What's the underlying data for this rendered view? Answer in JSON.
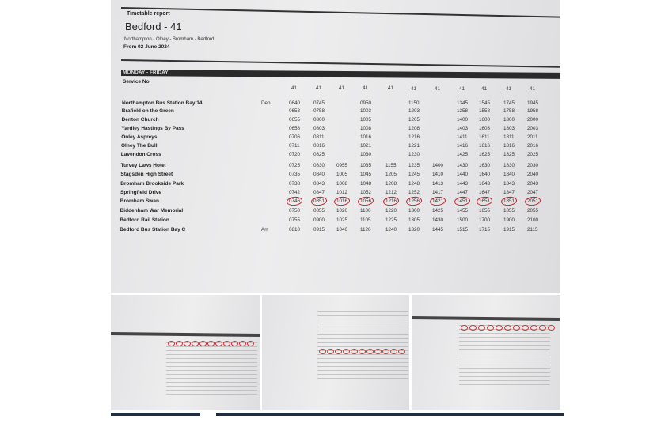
{
  "report": {
    "header_label": "Timetable report",
    "title": "Bedford - 41",
    "route": "Northampton - Olney - Bromham - Bedford",
    "from": "From 02 June 2024",
    "day_band": "MONDAY - FRIDAY",
    "service_no_label": "Service No",
    "service_numbers": [
      "41",
      "41",
      "41",
      "41",
      "41",
      "41",
      "41",
      "41",
      "41",
      "41",
      "41"
    ],
    "highlight_color": "#c0222a",
    "stops": [
      {
        "name": "Northampton Bus Station Bay 14",
        "marker": "Dep",
        "times": [
          "0640",
          "0745",
          null,
          "0950",
          null,
          "1150",
          null,
          "1345",
          "1545",
          "1745",
          "1945"
        ]
      },
      {
        "name": "Brafield on the Green",
        "marker": "",
        "times": [
          "0653",
          "0758",
          null,
          "1003",
          null,
          "1203",
          null,
          "1358",
          "1558",
          "1758",
          "1958"
        ]
      },
      {
        "name": "Denton Church",
        "marker": "",
        "times": [
          "0655",
          "0800",
          null,
          "1005",
          null,
          "1205",
          null,
          "1400",
          "1600",
          "1800",
          "2000"
        ]
      },
      {
        "name": "Yardley Hastings By Pass",
        "marker": "",
        "times": [
          "0658",
          "0803",
          null,
          "1008",
          null,
          "1208",
          null,
          "1403",
          "1603",
          "1803",
          "2003"
        ]
      },
      {
        "name": "Onley Aspreys",
        "marker": "",
        "times": [
          "0706",
          "0811",
          null,
          "1016",
          null,
          "1216",
          null,
          "1411",
          "1611",
          "1811",
          "2011"
        ]
      },
      {
        "name": "Olney The Bull",
        "marker": "",
        "times": [
          "0711",
          "0816",
          null,
          "1021",
          null,
          "1221",
          null,
          "1416",
          "1616",
          "1816",
          "2016"
        ]
      },
      {
        "name": "Lavendon Cross",
        "marker": "",
        "times": [
          "0720",
          "0825",
          null,
          "1030",
          null,
          "1230",
          null,
          "1425",
          "1625",
          "1825",
          "2025"
        ]
      },
      {
        "name": "Turvey Laws Hotel",
        "marker": "",
        "times": [
          "0725",
          "0830",
          "0955",
          "1035",
          "1155",
          "1235",
          "1400",
          "1430",
          "1630",
          "1830",
          "2030"
        ]
      },
      {
        "name": "Stagsden High Street",
        "marker": "",
        "times": [
          "0735",
          "0840",
          "1005",
          "1045",
          "1205",
          "1245",
          "1410",
          "1440",
          "1640",
          "1840",
          "2040"
        ]
      },
      {
        "name": "Bromham Brookside Park",
        "marker": "",
        "times": [
          "0738",
          "0843",
          "1008",
          "1048",
          "1208",
          "1248",
          "1413",
          "1443",
          "1643",
          "1843",
          "2043"
        ]
      },
      {
        "name": "Springfield Drive",
        "marker": "",
        "times": [
          "0742",
          "0847",
          "1012",
          "1052",
          "1212",
          "1252",
          "1417",
          "1447",
          "1647",
          "1847",
          "2047"
        ]
      },
      {
        "name": "Bromham Swan",
        "marker": "",
        "highlighted": true,
        "times": [
          "0746",
          "0851",
          "1016",
          "1056",
          "1216",
          "1256",
          "1421",
          "1451",
          "1651",
          "1851",
          "2051"
        ]
      },
      {
        "name": "Biddenham War Memorial",
        "marker": "",
        "times": [
          "0750",
          "0855",
          "1020",
          "1100",
          "1220",
          "1300",
          "1425",
          "1455",
          "1655",
          "1855",
          "2055"
        ]
      },
      {
        "name": "Bedford Rail Station",
        "marker": "",
        "times": [
          "0755",
          "0900",
          "1025",
          "1105",
          "1225",
          "1305",
          "1430",
          "1500",
          "1700",
          "1900",
          "2100"
        ]
      },
      {
        "name": "Bedford Bus Station Bay C",
        "marker": "Arr",
        "times": [
          "0810",
          "0915",
          "1040",
          "1120",
          "1240",
          "1320",
          "1445",
          "1515",
          "1715",
          "1915",
          "2115"
        ]
      }
    ]
  },
  "gallery": {
    "thumbnails": [
      "timetable-photo-2",
      "timetable-photo-3",
      "timetable-photo-4"
    ]
  }
}
